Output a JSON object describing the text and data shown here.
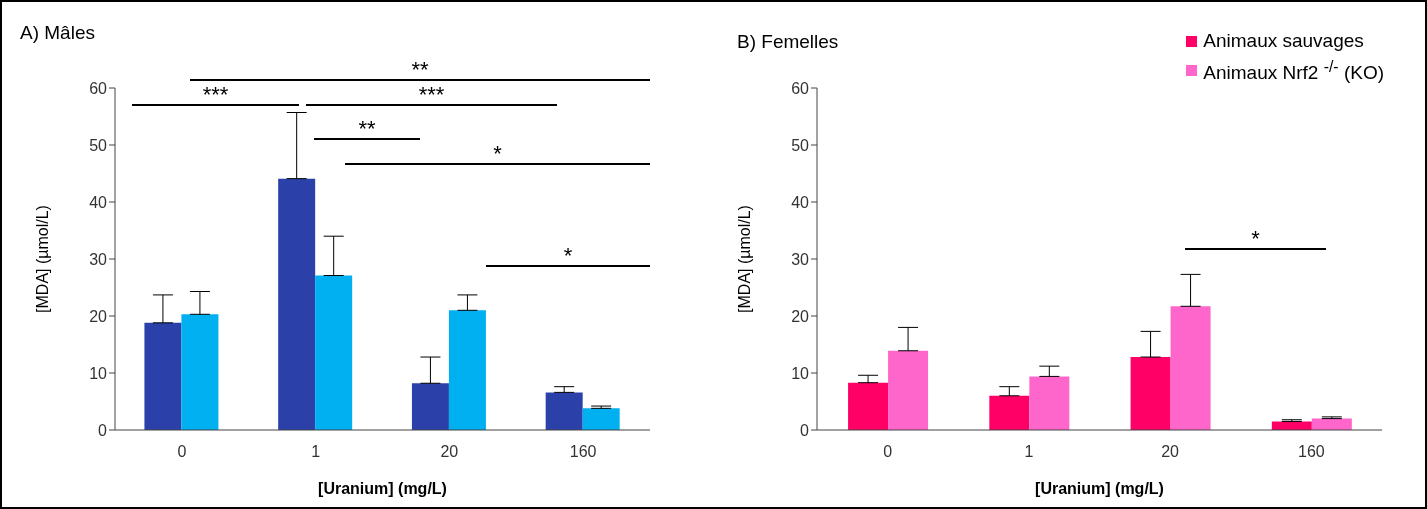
{
  "chart_data": [
    {
      "type": "bar",
      "title": "A) Mâles",
      "xlabel": "[Uranium] (mg/L)",
      "ylabel": "[MDA] (µmol/L)",
      "categories": [
        "0",
        "1",
        "20",
        "160"
      ],
      "ylim": [
        0,
        60
      ],
      "yticks": [
        0,
        10,
        20,
        30,
        40,
        50,
        60
      ],
      "grid": false,
      "legend": false,
      "series": [
        {
          "color": "#2b40a8",
          "values": [
            18.8,
            44.1,
            8.2,
            6.6
          ],
          "errors": [
            [
              18.8,
              23.7
            ],
            [
              44.1,
              55.7
            ],
            [
              8.2,
              12.8
            ],
            [
              6.6,
              7.6
            ]
          ]
        },
        {
          "color": "#00b0f0",
          "values": [
            20.3,
            27.1,
            21.0,
            3.8
          ],
          "errors": [
            [
              20.3,
              24.3
            ],
            [
              27.1,
              34.0
            ],
            [
              21.0,
              23.7
            ],
            [
              3.8,
              4.2
            ]
          ]
        }
      ],
      "annotations": [
        "**",
        "***",
        "***",
        "**",
        "*",
        "*"
      ]
    },
    {
      "type": "bar",
      "title": "B) Femelles",
      "xlabel": "[Uranium] (mg/L)",
      "ylabel": "[MDA] (µmol/L)",
      "categories": [
        "0",
        "1",
        "20",
        "160"
      ],
      "ylim": [
        0,
        60
      ],
      "yticks": [
        0,
        10,
        20,
        30,
        40,
        50,
        60
      ],
      "grid": false,
      "legend": "top right",
      "series": [
        {
          "name": "Animaux sauvages",
          "color": "#ff0066",
          "values": [
            8.3,
            6.0,
            12.8,
            1.5
          ],
          "errors": [
            [
              8.3,
              9.6
            ],
            [
              6.0,
              7.6
            ],
            [
              12.8,
              17.3
            ],
            [
              1.5,
              1.8
            ]
          ]
        },
        {
          "name": "Animaux Nrf2 $^{-/-}$ (KO)",
          "color": "#ff66cc",
          "values": [
            13.9,
            9.4,
            21.7,
            2.0
          ],
          "errors": [
            [
              13.9,
              18.0
            ],
            [
              9.4,
              11.2
            ],
            [
              21.7,
              27.3
            ],
            [
              2.0,
              2.3
            ]
          ]
        }
      ],
      "annotations": [
        "*"
      ]
    }
  ]
}
